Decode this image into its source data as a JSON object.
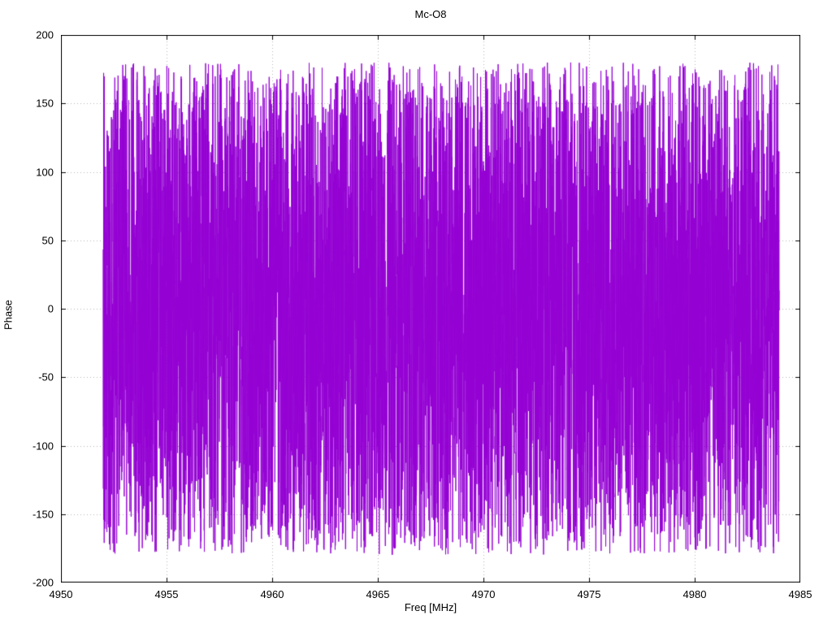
{
  "page": {
    "background": "#ffffff",
    "text_color": "#000000",
    "grid_color": "#b8b8b8",
    "border_color": "#000000"
  },
  "chart_data": {
    "type": "line",
    "title": "Mc-O8",
    "xlabel": "Freq [MHz]",
    "ylabel": "Phase",
    "xlim": [
      4950,
      4985
    ],
    "ylim": [
      -200,
      200
    ],
    "xticks": [
      4950,
      4955,
      4960,
      4965,
      4970,
      4975,
      4980,
      4985
    ],
    "yticks": [
      -200,
      -150,
      -100,
      -50,
      0,
      50,
      100,
      150,
      200
    ],
    "grid": true,
    "grid_style": "dotted",
    "legend_position": "none",
    "series": [
      {
        "name": "phase",
        "color": "#9400d3",
        "line_width": 1,
        "x_start": 4952.0,
        "x_end": 4984.0,
        "num_points": 6000,
        "y_min": -180,
        "y_max": 180,
        "distribution": "uniform random wrapped phase noise spanning -180 to +180 degrees, rendered as a dense violet band",
        "seed": 987654321
      }
    ]
  }
}
